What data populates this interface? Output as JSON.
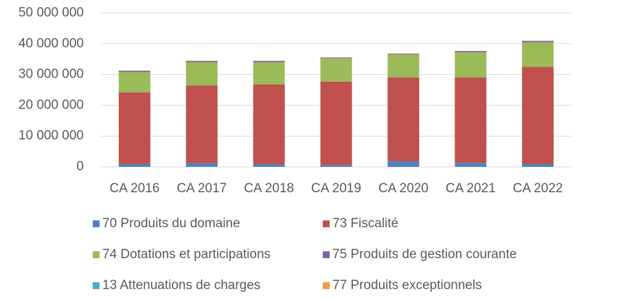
{
  "chart_data": {
    "type": "stacked_bar",
    "categories": [
      "CA 2016",
      "CA 2017",
      "CA 2018",
      "CA 2019",
      "CA 2020",
      "CA 2021",
      "CA 2022"
    ],
    "series": [
      {
        "name": "70 Produits du domaine",
        "color": "#4f81bd",
        "values": [
          900000,
          1200000,
          900000,
          600000,
          1800000,
          1300000,
          900000
        ]
      },
      {
        "name": "73 Fiscalité",
        "color": "#c0504d",
        "values": [
          23300000,
          25300000,
          25900000,
          27100000,
          27300000,
          27800000,
          31600000
        ]
      },
      {
        "name": "74 Dotations et participations",
        "color": "#9bbb59",
        "values": [
          6600000,
          7500000,
          7200000,
          7500000,
          7400000,
          8100000,
          8000000
        ]
      },
      {
        "name": "75 Produits de  gestion courante",
        "color": "#8064a2",
        "values": [
          400000,
          400000,
          400000,
          200000,
          200000,
          400000,
          400000
        ]
      },
      {
        "name": "13 Attenuations de charges",
        "color": "#4bacc6",
        "values": [
          50000,
          50000,
          50000,
          50000,
          50000,
          50000,
          50000
        ]
      },
      {
        "name": "77 Produits exceptionnels",
        "color": "#f79646",
        "values": [
          80000,
          80000,
          80000,
          200000,
          150000,
          80000,
          80000
        ]
      }
    ],
    "ylim": [
      0,
      50000000
    ],
    "yticks": [
      0,
      {
        "value": 10000000,
        "label": "10 000 000"
      },
      {
        "value": 20000000,
        "label": "20 000 000"
      },
      {
        "value": 30000000,
        "label": "30 000 000"
      },
      {
        "value": 40000000,
        "label": "40 000 000"
      },
      {
        "value": 50000000,
        "label": "50 000 000"
      }
    ],
    "grid": true
  }
}
